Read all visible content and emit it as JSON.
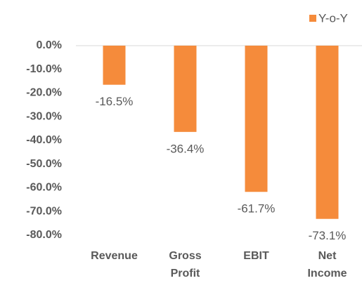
{
  "chart_data": {
    "type": "bar",
    "categories": [
      "Revenue",
      "Gross Profit",
      "EBIT",
      "Net Income"
    ],
    "series": [
      {
        "name": "Y-o-Y",
        "color": "#f58b3b",
        "values": [
          -16.5,
          -36.4,
          -61.7,
          -73.1
        ],
        "value_labels": [
          "-16.5%",
          "-36.4%",
          "-61.7%",
          "-73.1%"
        ]
      }
    ],
    "ylim": [
      -80,
      0
    ],
    "yticks": [
      {
        "value": 0,
        "label": "0.0%"
      },
      {
        "value": -10,
        "label": "-10.0%"
      },
      {
        "value": -20,
        "label": "-20.0%"
      },
      {
        "value": -30,
        "label": "-30.0%"
      },
      {
        "value": -40,
        "label": "-40.0%"
      },
      {
        "value": -50,
        "label": "-50.0%"
      },
      {
        "value": -60,
        "label": "-60.0%"
      },
      {
        "value": -70,
        "label": "-70.0%"
      },
      {
        "value": -80,
        "label": "-80.0%"
      }
    ],
    "grid": false,
    "legend": "top-right"
  }
}
